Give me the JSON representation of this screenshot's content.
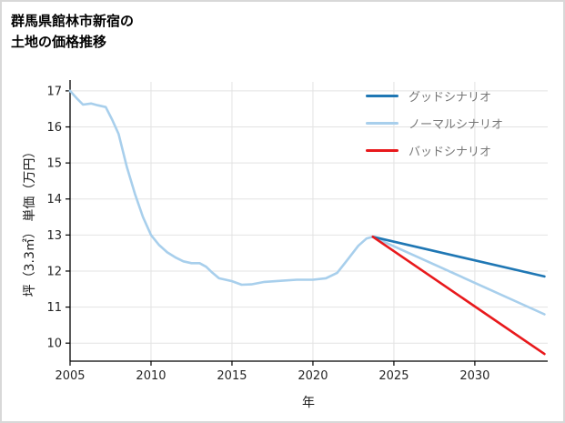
{
  "title": {
    "line1": "群馬県館林市新宿の",
    "line2": "土地の価格推移"
  },
  "chart_data": {
    "type": "line",
    "title": "群馬県館林市新宿の土地の価格推移",
    "xlabel": "年",
    "ylabel": "坪（3.3㎡） 単価（万円）",
    "xlim": [
      2005,
      2034.5
    ],
    "ylim": [
      9.5,
      17.25
    ],
    "xticks": [
      2005,
      2010,
      2015,
      2020,
      2025,
      2030
    ],
    "yticks": [
      10,
      11,
      12,
      13,
      14,
      15,
      16,
      17
    ],
    "grid": true,
    "legend_position": "top-right",
    "colors": {
      "grid": "#e3e3e3",
      "axis": "#000000",
      "tick_label": "#262626",
      "good": "#1f77b4",
      "normal": "#a8cfec",
      "bad": "#e8191c"
    },
    "legend": [
      {
        "label": "グッドシナリオ",
        "color": "#1f77b4"
      },
      {
        "label": "ノーマルシナリオ",
        "color": "#a8cfec"
      },
      {
        "label": "バッドシナリオ",
        "color": "#e8191c"
      }
    ],
    "series": [
      {
        "name": "ノーマルシナリオ",
        "color": "#a8cfec",
        "width": 2.6,
        "x": [
          2005,
          2005.4,
          2005.8,
          2006.3,
          2006.7,
          2007.2,
          2007.6,
          2008,
          2008.5,
          2009,
          2009.5,
          2010,
          2010.5,
          2011,
          2011.5,
          2012,
          2012.5,
          2013,
          2013.4,
          2013.8,
          2014.2,
          2015,
          2015.6,
          2016.2,
          2017,
          2018,
          2019,
          2020,
          2020.8,
          2021.5,
          2022.2,
          2022.8,
          2023.3,
          2023.7,
          2034.3
        ],
        "y": [
          17.0,
          16.8,
          16.62,
          16.65,
          16.6,
          16.55,
          16.2,
          15.8,
          14.9,
          14.15,
          13.5,
          13.0,
          12.72,
          12.52,
          12.38,
          12.27,
          12.22,
          12.22,
          12.12,
          11.95,
          11.8,
          11.72,
          11.62,
          11.63,
          11.7,
          11.73,
          11.76,
          11.76,
          11.8,
          11.95,
          12.35,
          12.7,
          12.9,
          12.95,
          10.8
        ]
      },
      {
        "name": "グッドシナリオ",
        "color": "#1f77b4",
        "width": 2.6,
        "x": [
          2023.7,
          2034.3
        ],
        "y": [
          12.95,
          11.85
        ]
      },
      {
        "name": "バッドシナリオ",
        "color": "#e8191c",
        "width": 2.6,
        "x": [
          2023.7,
          2034.3
        ],
        "y": [
          12.95,
          9.7
        ]
      }
    ]
  }
}
